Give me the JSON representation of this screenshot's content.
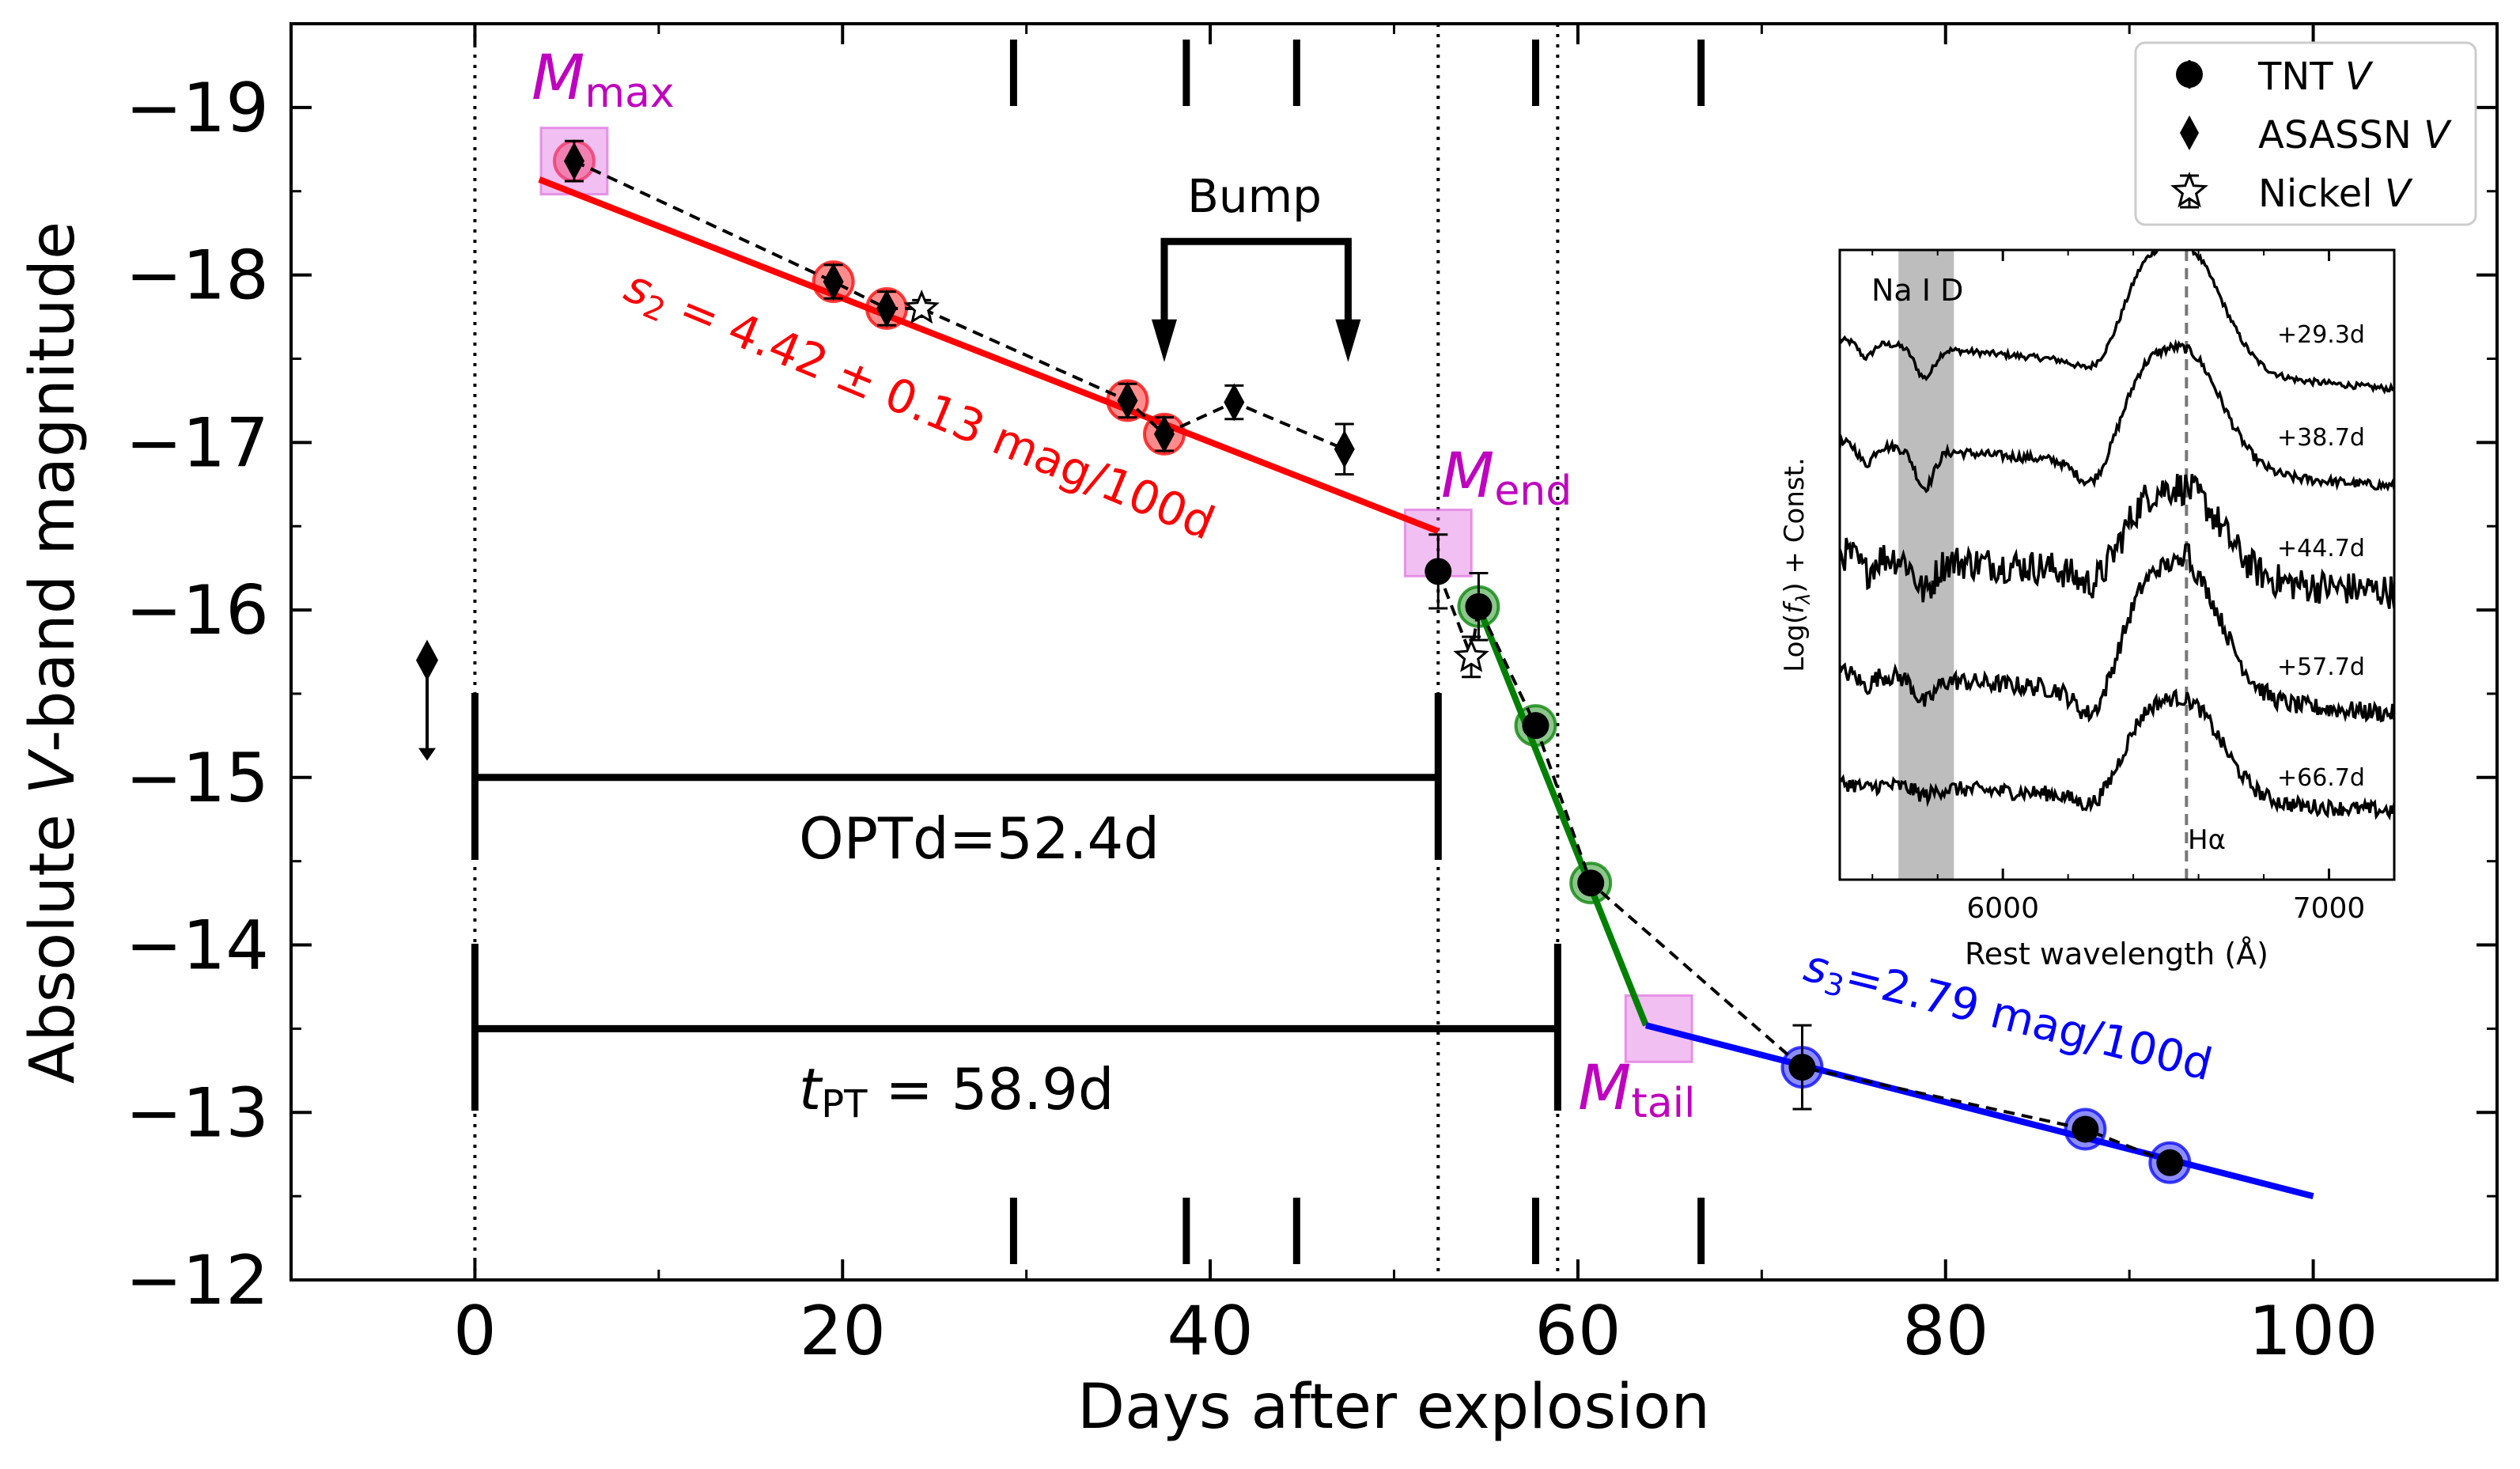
{
  "chart_data": {
    "type": "scatter",
    "xlabel": "Days after explosion",
    "ylabel_prefix": "Absolute ",
    "ylabel_italic": "V",
    "ylabel_suffix": "-band magnitude",
    "xlim": [
      -10,
      110
    ],
    "ylim": [
      -19.5,
      -12
    ],
    "x_ticks": [
      0,
      20,
      40,
      60,
      80,
      100
    ],
    "x_tick_labels": [
      "0",
      "20",
      "40",
      "60",
      "80",
      "100"
    ],
    "y_ticks": [
      -19,
      -18,
      -17,
      -16,
      -15,
      -14,
      -13,
      -12
    ],
    "y_tick_labels": [
      "−19",
      "−18",
      "−17",
      "−16",
      "−15",
      "−14",
      "−13",
      "−12"
    ],
    "series": [
      {
        "name": "TNT V",
        "marker": "circle",
        "points": [
          {
            "x": 52.4,
            "y": -16.23,
            "err": 0.22
          },
          {
            "x": 54.6,
            "y": -16.02,
            "err": 0.2
          },
          {
            "x": 57.7,
            "y": -15.31,
            "err": 0.05
          },
          {
            "x": 60.7,
            "y": -14.37,
            "err": 0.05
          },
          {
            "x": 72.2,
            "y": -13.27,
            "err": 0.25
          },
          {
            "x": 87.6,
            "y": -12.9,
            "err": 0.05
          },
          {
            "x": 92.2,
            "y": -12.7,
            "err": 0.05
          }
        ]
      },
      {
        "name": "ASASSN V",
        "marker": "diamond",
        "points": [
          {
            "x": 5.4,
            "y": -18.68,
            "err": 0.12
          },
          {
            "x": 19.5,
            "y": -17.96,
            "err": 0.1
          },
          {
            "x": 22.4,
            "y": -17.8,
            "err": 0.1
          },
          {
            "x": 35.5,
            "y": -17.25,
            "err": 0.1
          },
          {
            "x": 37.5,
            "y": -17.05,
            "err": 0.1
          },
          {
            "x": 41.3,
            "y": -17.24,
            "err": 0.1
          },
          {
            "x": 47.3,
            "y": -16.96,
            "err": 0.15
          }
        ]
      },
      {
        "name": "Nickel V",
        "marker": "star",
        "points": [
          {
            "x": 24.3,
            "y": -17.8,
            "err": 0.05
          },
          {
            "x": 54.2,
            "y": -15.72,
            "err": 0.12
          }
        ]
      }
    ],
    "upper_limit": {
      "x": -2.6,
      "y": -15.7,
      "arrow_to": -15.1
    },
    "highlighted_points": {
      "red": [
        [
          5.4,
          -18.68
        ],
        [
          19.5,
          -17.96
        ],
        [
          22.4,
          -17.8
        ],
        [
          35.5,
          -17.25
        ],
        [
          37.5,
          -17.05
        ]
      ],
      "green": [
        [
          54.6,
          -16.02
        ],
        [
          57.7,
          -15.31
        ],
        [
          60.7,
          -14.37
        ]
      ],
      "blue": [
        [
          72.2,
          -13.27
        ],
        [
          87.6,
          -12.9
        ],
        [
          92.2,
          -12.7
        ]
      ]
    },
    "fits": [
      {
        "name": "s2",
        "color": "#ff0000",
        "x": [
          3.5,
          52.4
        ],
        "y": [
          -18.57,
          -16.47
        ]
      },
      {
        "name": "plateau-fall",
        "color": "#008000",
        "x": [
          54.6,
          63.7
        ],
        "y": [
          -16.02,
          -13.52
        ]
      },
      {
        "name": "s3",
        "color": "#0000ff",
        "x": [
          63.7,
          100
        ],
        "y": [
          -13.52,
          -12.5
        ]
      }
    ],
    "dashed_path": [
      [
        5.4,
        -18.68
      ],
      [
        19.5,
        -17.96
      ],
      [
        22.4,
        -17.8
      ],
      [
        24.3,
        -17.8
      ],
      [
        35.5,
        -17.25
      ],
      [
        37.5,
        -17.05
      ],
      [
        41.3,
        -17.24
      ],
      [
        47.3,
        -16.96
      ]
    ],
    "dashed_path2": [
      [
        52.4,
        -16.23
      ],
      [
        54.2,
        -15.72
      ],
      [
        54.6,
        -16.02
      ],
      [
        57.7,
        -15.31
      ],
      [
        60.7,
        -14.37
      ],
      [
        72.2,
        -13.27
      ],
      [
        87.6,
        -12.9
      ],
      [
        92.2,
        -12.7
      ]
    ],
    "epoch_markers": [
      29.3,
      38.7,
      44.7,
      57.7,
      66.7
    ],
    "vertical_lines": [
      0,
      52.4,
      58.9
    ],
    "key_points": {
      "max": {
        "x": 5.4,
        "y": -18.68
      },
      "end": {
        "x": 52.4,
        "y": -16.4
      },
      "tail": {
        "x": 64.4,
        "y": -13.5
      }
    },
    "bump": {
      "x1": 37.5,
      "x2": 47.5,
      "top": -18.2,
      "arrow_y": -17.48
    },
    "optd": {
      "x1": 0,
      "x2": 52.4,
      "y": -15.0
    },
    "tpt": {
      "x1": 0,
      "x2": 58.9,
      "y": -13.5
    },
    "labels": {
      "m_max_base": "M",
      "m_max_sub": "max",
      "m_end_base": "M",
      "m_end_sub": "end",
      "m_tail_base": "M",
      "m_tail_sub": "tail",
      "bump": "Bump",
      "optd": "OPTd=52.4d",
      "tpt_t": "t",
      "tpt_sub": "PT",
      "tpt_value": " = 58.9d",
      "s2_s": "s",
      "s2_sub": "2",
      "s2_value": " = 4.42 ± 0.13 mag/100d",
      "s3_s": "s",
      "s3_sub": "3",
      "s3_value": "=2.79 mag/100d"
    },
    "legend": {
      "position": "top-right",
      "entries": [
        {
          "label": "TNT ",
          "italic": "V",
          "marker": "circle"
        },
        {
          "label": "ASASSN ",
          "italic": "V",
          "marker": "diamond"
        },
        {
          "label": "Nickel ",
          "italic": "V",
          "marker": "star"
        }
      ]
    },
    "colors": {
      "red": "#ff0000",
      "green": "#008000",
      "blue": "#0000ff",
      "magenta": "#c000c0",
      "pink": "#e070e0"
    },
    "inset": {
      "type": "line",
      "xlabel": "Rest wavelength (Å)",
      "ylabel": "Log(fλ) + Const.",
      "ylabel_prefix": "Log(",
      "ylabel_f": "f",
      "ylabel_sub": "λ",
      "ylabel_suffix": ") + Const.",
      "xlim": [
        5500,
        7200
      ],
      "x_ticks": [
        6000,
        7000
      ],
      "x_tick_labels": [
        "6000",
        "7000"
      ],
      "shade_range": [
        5680,
        5850
      ],
      "shade_label": "Na I D",
      "halpha_line": 6563,
      "halpha_label": "Hα",
      "spectra_labels": [
        "+29.3d",
        "+38.7d",
        "+44.7d",
        "+57.7d",
        "+66.7d"
      ]
    }
  }
}
